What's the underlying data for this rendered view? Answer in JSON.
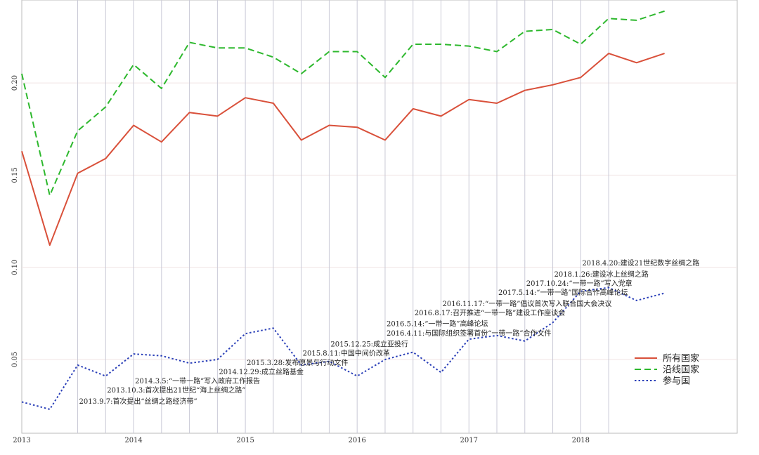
{
  "chart_data": {
    "type": "line",
    "title": "",
    "xlabel": "",
    "ylabel": "",
    "x_ticks": [
      "2013",
      "2014",
      "2015",
      "2016",
      "2017",
      "2018"
    ],
    "y_ticks": [
      "0.05",
      "0.10",
      "0.15",
      "0.20"
    ],
    "ylim": [
      0.01,
      0.245
    ],
    "xlim": [
      2013.0,
      2019.4
    ],
    "grid": "vertical lines at event dates, faint horizontal lines",
    "legend_position": "lower-right",
    "x": [
      2013.0,
      2013.25,
      2013.5,
      2013.75,
      2014.0,
      2014.25,
      2014.5,
      2014.75,
      2015.0,
      2015.25,
      2015.5,
      2015.75,
      2016.0,
      2016.25,
      2016.5,
      2016.75,
      2017.0,
      2017.25,
      2017.5,
      2017.75,
      2018.0,
      2018.25,
      2018.5,
      2018.75
    ],
    "series": [
      {
        "name": "所有国家",
        "color": "#d9503a",
        "dash": "solid",
        "values": [
          0.163,
          0.112,
          0.151,
          0.159,
          0.177,
          0.168,
          0.184,
          0.182,
          0.192,
          0.189,
          0.169,
          0.177,
          0.176,
          0.169,
          0.186,
          0.182,
          0.191,
          0.189,
          0.196,
          0.199,
          0.203,
          0.216,
          0.211,
          0.216
        ]
      },
      {
        "name": "沿线国家",
        "color": "#2db82d",
        "dash": "dashed",
        "values": [
          0.205,
          0.139,
          0.174,
          0.187,
          0.21,
          0.197,
          0.222,
          0.219,
          0.219,
          0.214,
          0.205,
          0.217,
          0.217,
          0.203,
          0.221,
          0.221,
          0.22,
          0.217,
          0.228,
          0.229,
          0.221,
          0.235,
          0.234,
          0.239
        ]
      },
      {
        "name": "参与国",
        "color": "#2a3fb8",
        "dash": "dotted",
        "values": [
          0.027,
          0.023,
          0.047,
          0.041,
          0.053,
          0.052,
          0.048,
          0.05,
          0.064,
          0.067,
          0.047,
          0.049,
          0.041,
          0.05,
          0.054,
          0.043,
          0.061,
          0.063,
          0.06,
          0.07,
          0.087,
          0.089,
          0.082,
          0.086
        ]
      }
    ],
    "event_lines": [
      2013.5,
      2013.75,
      2014.0,
      2014.25,
      2014.5,
      2014.75,
      2015.0,
      2015.25,
      2015.5,
      2015.75,
      2016.0,
      2016.25,
      2016.5,
      2016.75,
      2017.0,
      2017.25,
      2017.5,
      2017.75,
      2018.0,
      2018.25
    ],
    "annotations": [
      {
        "text": "2013.9.7:首次提出“丝绸之路经济带”",
        "x": 2013.5,
        "y": 0.026
      },
      {
        "text": "2013.10.3:首次提出21世纪“海上丝绸之路”",
        "x": 2013.75,
        "y": 0.032
      },
      {
        "text": "2014.3.5:“一带一路”写入政府工作报告",
        "x": 2014.0,
        "y": 0.037
      },
      {
        "text": "2014.12.29:成立丝路基金",
        "x": 2014.75,
        "y": 0.042
      },
      {
        "text": "2015.3.28:发布愿景与行动文件",
        "x": 2015.0,
        "y": 0.047
      },
      {
        "text": "2015.8.11:中国中间价改革",
        "x": 2015.5,
        "y": 0.052
      },
      {
        "text": "2015.12.25:成立亚投行",
        "x": 2015.75,
        "y": 0.057
      },
      {
        "text": "2016.4.11:与国际组织签署首份“一带一路”合作文件",
        "x": 2016.25,
        "y": 0.063
      },
      {
        "text": "2016.5.14:“一带一路”高峰论坛",
        "x": 2016.25,
        "y": 0.068
      },
      {
        "text": "2016.8.17:召开推进“一带一路”建设工作座谈会",
        "x": 2016.5,
        "y": 0.074
      },
      {
        "text": "2016.11.17:“一带一路”倡议首次写入联合国大会决议",
        "x": 2016.75,
        "y": 0.079
      },
      {
        "text": "2017.5.14:“一带一路”国际合作高峰论坛",
        "x": 2017.25,
        "y": 0.085
      },
      {
        "text": "2017.10.24:“一带一路”写入党章",
        "x": 2017.5,
        "y": 0.09
      },
      {
        "text": "2018.1.26:建设冰上丝绸之路",
        "x": 2017.75,
        "y": 0.095
      },
      {
        "text": "2018.4.20:建设21世纪数字丝绸之路",
        "x": 2018.0,
        "y": 0.101
      }
    ]
  }
}
